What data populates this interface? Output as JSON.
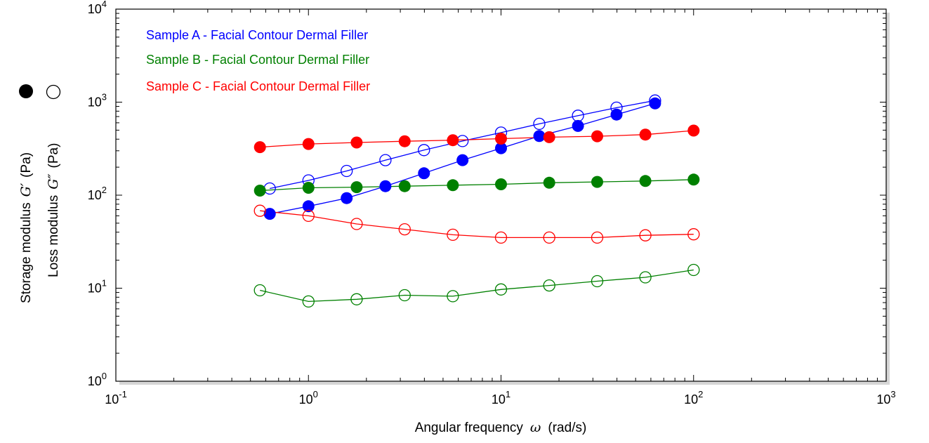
{
  "chart_data": {
    "type": "scatter",
    "xscale": "log",
    "yscale": "log",
    "xlim": [
      0.1,
      1000
    ],
    "ylim": [
      1,
      10000
    ],
    "grid": false,
    "legend_position": "top-left",
    "x_ticks": [
      "10",
      "10",
      "10",
      "10",
      "10"
    ],
    "x_tick_exps": [
      "-1",
      "0",
      "1",
      "2",
      "3"
    ],
    "y_ticks": [
      "10",
      "10",
      "10",
      "10",
      "10"
    ],
    "y_tick_exps": [
      "0",
      "1",
      "2",
      "3",
      "4"
    ],
    "xlabel": {
      "text": "Angular frequency",
      "symbol": "ω",
      "unit": "(rad/s)"
    },
    "ylabel_storage": {
      "text": "Storage modulus",
      "symbol": "G′",
      "unit": "(Pa)"
    },
    "ylabel_loss": {
      "text": "Loss modulus",
      "symbol": "G″",
      "unit": "(Pa)"
    },
    "series": [
      {
        "name": "Sample A - Facial Contour Dermal Filler",
        "color": "#0000ff",
        "storage": {
          "x": [
            0.63,
            1.0,
            1.58,
            2.51,
            3.98,
            6.31,
            10.0,
            15.8,
            25.1,
            39.8,
            63.1
          ],
          "y": [
            63,
            76,
            93,
            125,
            172,
            238,
            320,
            432,
            555,
            735,
            970
          ]
        },
        "loss": {
          "x": [
            0.63,
            1.0,
            1.58,
            2.51,
            3.98,
            6.31,
            10.0,
            15.8,
            25.1,
            39.8,
            63.1
          ],
          "y": [
            118,
            144,
            182,
            238,
            305,
            382,
            470,
            585,
            715,
            872,
            1040
          ]
        }
      },
      {
        "name": "Sample B - Facial Contour Dermal Filler",
        "color": "#008000",
        "storage": {
          "x": [
            0.56,
            1.0,
            1.78,
            3.16,
            5.62,
            10.0,
            17.8,
            31.6,
            56.2,
            100
          ],
          "y": [
            112,
            120,
            122,
            125,
            128,
            131,
            136,
            139,
            142,
            147
          ]
        },
        "loss": {
          "x": [
            0.56,
            1.0,
            1.78,
            3.16,
            5.62,
            10.0,
            17.8,
            31.6,
            56.2,
            100
          ],
          "y": [
            9.5,
            7.2,
            7.6,
            8.4,
            8.2,
            9.7,
            10.7,
            11.9,
            13.1,
            15.7
          ]
        }
      },
      {
        "name": "Sample C - Facial Contour Dermal Filler",
        "color": "#ff0000",
        "storage": {
          "x": [
            0.56,
            1.0,
            1.78,
            3.16,
            5.62,
            10.0,
            17.8,
            31.6,
            56.2,
            100
          ],
          "y": [
            328,
            355,
            368,
            380,
            390,
            405,
            420,
            430,
            448,
            495
          ]
        },
        "loss": {
          "x": [
            0.56,
            1.0,
            1.78,
            3.16,
            5.62,
            10.0,
            17.8,
            31.6,
            56.2,
            100
          ],
          "y": [
            68,
            60,
            49,
            43,
            37.5,
            35,
            35,
            35,
            37,
            38
          ]
        }
      }
    ]
  }
}
